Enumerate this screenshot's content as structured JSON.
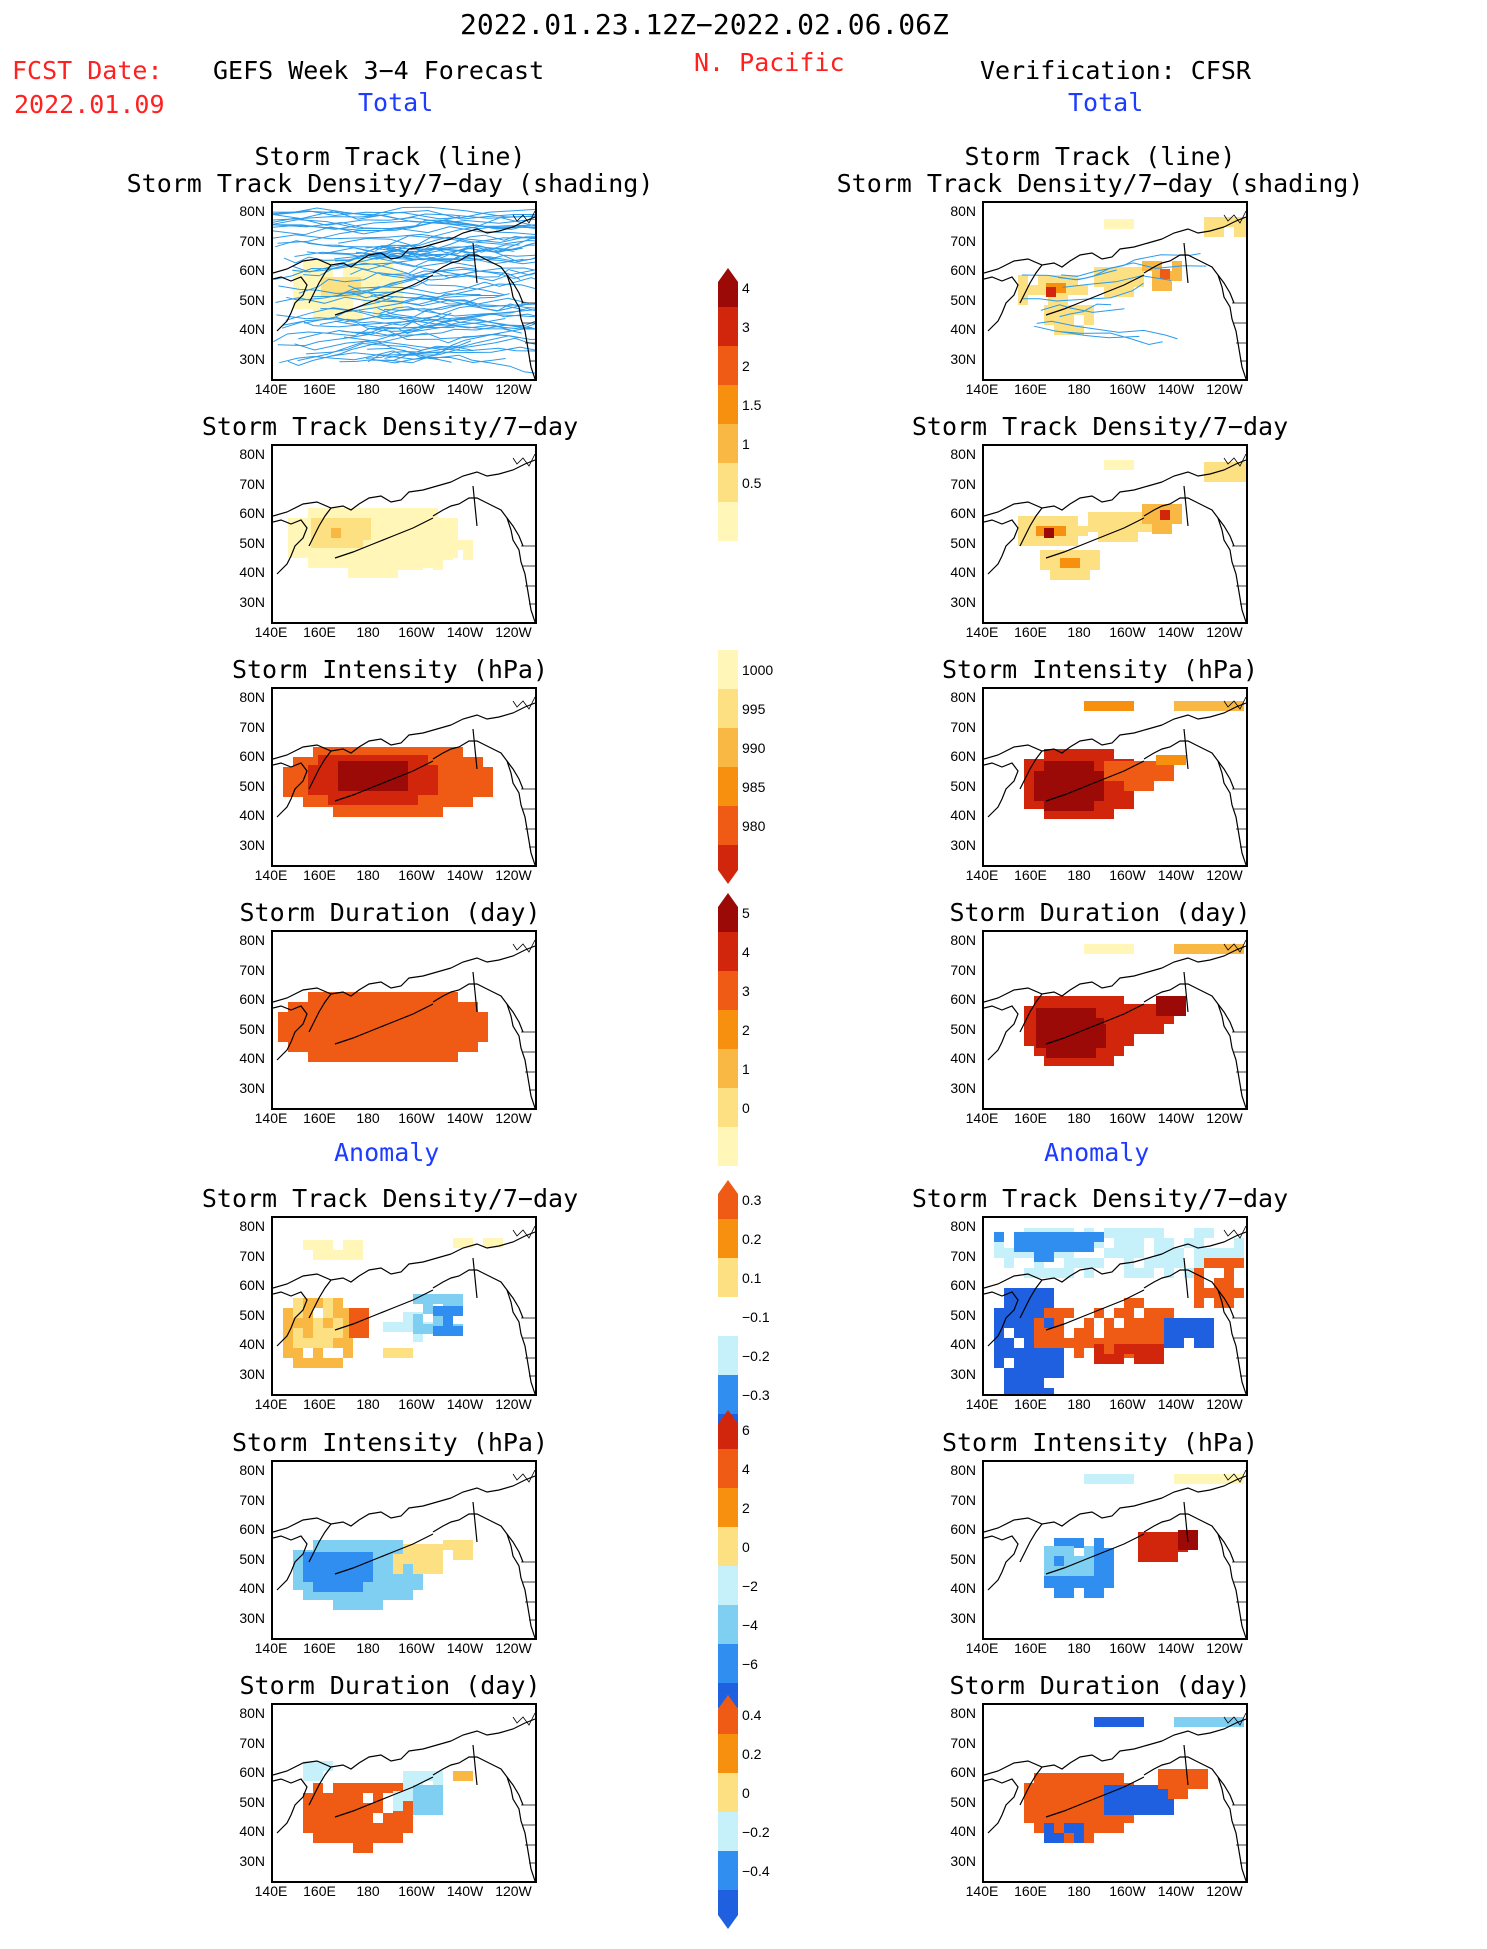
{
  "header": {
    "period": "2022.01.23.12Z−2022.02.06.06Z",
    "fcst_label": "FCST Date:",
    "fcst_date": "2022.01.09",
    "forecast_title": "GEFS Week 3−4 Forecast",
    "region": "N. Pacific",
    "verification_title": "Verification: CFSR",
    "total_left": "Total",
    "total_right": "Total",
    "anomaly_left": "Anomaly",
    "anomaly_right": "Anomaly"
  },
  "panel_titles": {
    "track_line": "Storm Track (line)",
    "track_shading": "Storm Track Density/7−day (shading)",
    "density": "Storm Track Density/7−day",
    "intensity": "Storm Intensity (hPa)",
    "duration": "Storm Duration (day)"
  },
  "axes": {
    "y_ticks": [
      "80N",
      "70N",
      "60N",
      "50N",
      "40N",
      "30N"
    ],
    "x_ticks": [
      "140E",
      "160E",
      "180",
      "160W",
      "140W",
      "120W"
    ]
  },
  "colors": {
    "warm": [
      "#fff6b8",
      "#fde082",
      "#f9b843",
      "#f78f0f",
      "#ef5a14",
      "#d2260c",
      "#9b0a06"
    ],
    "cool": [
      "#c6f1fa",
      "#7ecff2",
      "#2f8ef0",
      "#1e60e0"
    ],
    "track_line": "#2b9bea",
    "title_red": "#ff2020",
    "title_blue": "#1e3cff"
  },
  "colorbars": [
    {
      "name": "density-total",
      "labels": [
        "4",
        "3",
        "2",
        "1.5",
        "1",
        "0.5"
      ]
    },
    {
      "name": "intensity-total",
      "labels": [
        "1000",
        "995",
        "990",
        "985",
        "980"
      ]
    },
    {
      "name": "duration-total",
      "labels": [
        "5",
        "4",
        "3",
        "2",
        "1",
        "0"
      ]
    },
    {
      "name": "density-anomaly",
      "labels": [
        "0.3",
        "0.2",
        "0.1",
        "−0.1",
        "−0.2",
        "−0.3"
      ]
    },
    {
      "name": "intensity-anomaly",
      "labels": [
        "6",
        "4",
        "2",
        "0",
        "−2",
        "−4",
        "−6"
      ]
    },
    {
      "name": "duration-anomaly",
      "labels": [
        "0.4",
        "0.2",
        "0",
        "−0.2",
        "−0.4"
      ]
    }
  ],
  "chart_data": [
    {
      "type": "heatmap",
      "title": "Storm Track (line) / Storm Track Density/7−day (shading)",
      "source": "GEFS",
      "note": "storm tracks overlaid on density"
    },
    {
      "type": "heatmap",
      "title": "Storm Track (line) / Storm Track Density/7−day (shading)",
      "source": "CFSR"
    },
    {
      "type": "heatmap",
      "title": "Storm Track Density/7−day",
      "source": "GEFS",
      "levels": [
        0.5,
        1,
        1.5,
        2,
        3,
        4
      ]
    },
    {
      "type": "heatmap",
      "title": "Storm Track Density/7−day",
      "source": "CFSR",
      "levels": [
        0.5,
        1,
        1.5,
        2,
        3,
        4
      ]
    },
    {
      "type": "heatmap",
      "title": "Storm Intensity (hPa)",
      "source": "GEFS",
      "levels": [
        980,
        985,
        990,
        995,
        1000
      ]
    },
    {
      "type": "heatmap",
      "title": "Storm Intensity (hPa)",
      "source": "CFSR",
      "levels": [
        980,
        985,
        990,
        995,
        1000
      ]
    },
    {
      "type": "heatmap",
      "title": "Storm Duration (day)",
      "source": "GEFS",
      "levels": [
        0,
        1,
        2,
        3,
        4,
        5
      ]
    },
    {
      "type": "heatmap",
      "title": "Storm Duration (day)",
      "source": "CFSR",
      "levels": [
        0,
        1,
        2,
        3,
        4,
        5
      ]
    },
    {
      "type": "heatmap",
      "title": "Storm Track Density/7−day",
      "source": "GEFS anomaly",
      "levels": [
        -0.3,
        -0.2,
        -0.1,
        0.1,
        0.2,
        0.3
      ]
    },
    {
      "type": "heatmap",
      "title": "Storm Track Density/7−day",
      "source": "CFSR anomaly",
      "levels": [
        -0.3,
        -0.2,
        -0.1,
        0.1,
        0.2,
        0.3
      ]
    },
    {
      "type": "heatmap",
      "title": "Storm Intensity (hPa)",
      "source": "GEFS anomaly",
      "levels": [
        -6,
        -4,
        -2,
        0,
        2,
        4,
        6
      ]
    },
    {
      "type": "heatmap",
      "title": "Storm Intensity (hPa)",
      "source": "CFSR anomaly",
      "levels": [
        -6,
        -4,
        -2,
        0,
        2,
        4,
        6
      ]
    },
    {
      "type": "heatmap",
      "title": "Storm Duration (day)",
      "source": "GEFS anomaly",
      "levels": [
        -0.4,
        -0.2,
        0,
        0.2,
        0.4
      ]
    },
    {
      "type": "heatmap",
      "title": "Storm Duration (day)",
      "source": "CFSR anomaly",
      "levels": [
        -0.4,
        -0.2,
        0,
        0.2,
        0.4
      ]
    }
  ]
}
